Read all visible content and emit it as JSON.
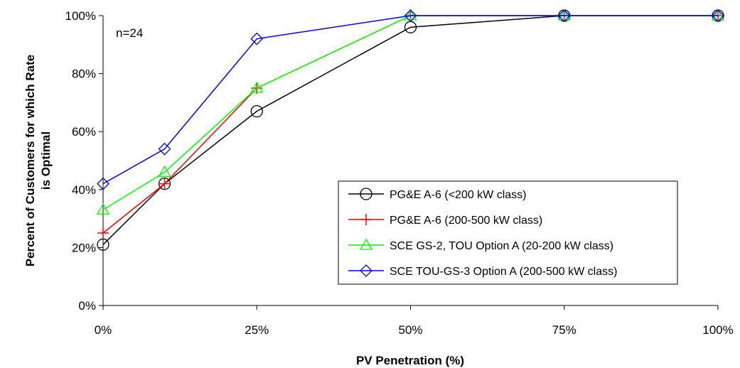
{
  "chart_data": {
    "type": "line",
    "title": "",
    "xlabel": "PV Penetration (%)",
    "ylabel_lines": [
      "Percent of Customers for which Rate",
      "is Optimal"
    ],
    "annotation": "n=24",
    "categories": [
      "0%",
      "10%",
      "25%",
      "50%",
      "75%",
      "100%"
    ],
    "x": [
      0,
      10,
      25,
      50,
      75,
      100
    ],
    "xtick_values": [
      0,
      25,
      50,
      75,
      100
    ],
    "xtick_labels": [
      "0%",
      "25%",
      "50%",
      "75%",
      "100%"
    ],
    "xlim": [
      0,
      100
    ],
    "ylim": [
      0,
      100
    ],
    "ytick_values": [
      0,
      20,
      40,
      60,
      80,
      100
    ],
    "ytick_labels": [
      "0%",
      "20%",
      "40%",
      "60%",
      "80%",
      "100%"
    ],
    "grid": false,
    "legend_position": "right",
    "series": [
      {
        "name": "PG&E A-6 (<200 kW class)",
        "color": "#000000",
        "marker": "circle",
        "values": [
          21,
          42,
          67,
          96,
          100,
          100
        ]
      },
      {
        "name": "PG&E A-6 (200-500 kW class)",
        "color": "#ff0000",
        "marker": "plus",
        "values": [
          25,
          42,
          75,
          100,
          100,
          100
        ]
      },
      {
        "name": "SCE GS-2, TOU Option A (20-200 kW class)",
        "color": "#00ff00",
        "marker": "triangle",
        "values": [
          33,
          46,
          75,
          100,
          100,
          100
        ]
      },
      {
        "name": "SCE TOU-GS-3 Option A (200-500 kW class)",
        "color": "#0000ff",
        "marker": "diamond",
        "values": [
          42,
          54,
          92,
          100,
          100,
          100
        ]
      }
    ]
  }
}
